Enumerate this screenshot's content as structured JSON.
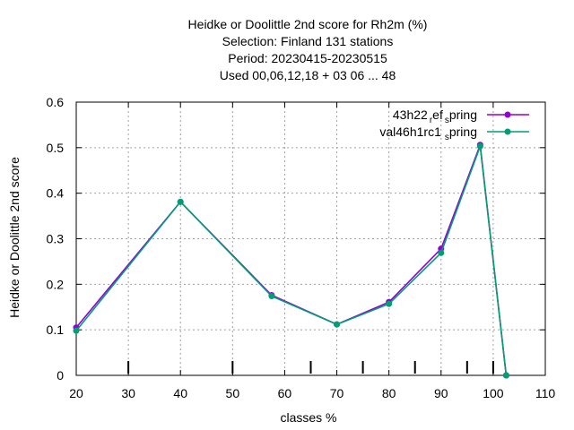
{
  "chart_data": {
    "type": "line",
    "title_lines": [
      "Heidke or Doolittle 2nd score  for Rh2m (%)",
      "Selection: Finland    131 stations",
      "Period: 20230415-20230515",
      "Used  00,06,12,18  + 03 06 ... 48"
    ],
    "xlabel": "classes %",
    "ylabel": "Heidke or Doolittle 2nd score",
    "xlim": [
      20,
      110
    ],
    "ylim": [
      0,
      0.6
    ],
    "xticks": [
      20,
      30,
      40,
      50,
      60,
      70,
      80,
      90,
      100,
      110
    ],
    "xtick_labels": [
      "20",
      "30",
      "40",
      "50",
      "60",
      "70",
      "80",
      "90",
      "100",
      "110"
    ],
    "yticks": [
      0,
      0.1,
      0.2,
      0.3,
      0.4,
      0.5,
      0.6
    ],
    "ytick_labels": [
      "0",
      "0.1",
      "0.2",
      "0.3",
      "0.4",
      "0.5",
      "0.6"
    ],
    "class_marks": [
      30,
      50,
      65,
      75,
      85,
      95,
      100
    ],
    "grid": true,
    "legend_position": "top-right",
    "series": [
      {
        "legend_main": "43h22",
        "legend_sub1": "r",
        "legend_mid": "ef",
        "legend_sub2": "s",
        "legend_end": "pring",
        "color": "#9400d3",
        "x": [
          20,
          40,
          57.5,
          70,
          80,
          90,
          97.5,
          102.5
        ],
        "y": [
          0.105,
          0.381,
          0.176,
          0.112,
          0.161,
          0.278,
          0.506,
          0.0
        ]
      },
      {
        "legend_main": "val46h1rc1",
        "legend_sub1": "",
        "legend_mid": "",
        "legend_sub2": "s",
        "legend_end": "pring",
        "color": "#009e73",
        "x": [
          20,
          40,
          57.5,
          70,
          80,
          90,
          97.5,
          102.5
        ],
        "y": [
          0.098,
          0.381,
          0.174,
          0.112,
          0.157,
          0.269,
          0.503,
          0.0
        ]
      }
    ]
  }
}
